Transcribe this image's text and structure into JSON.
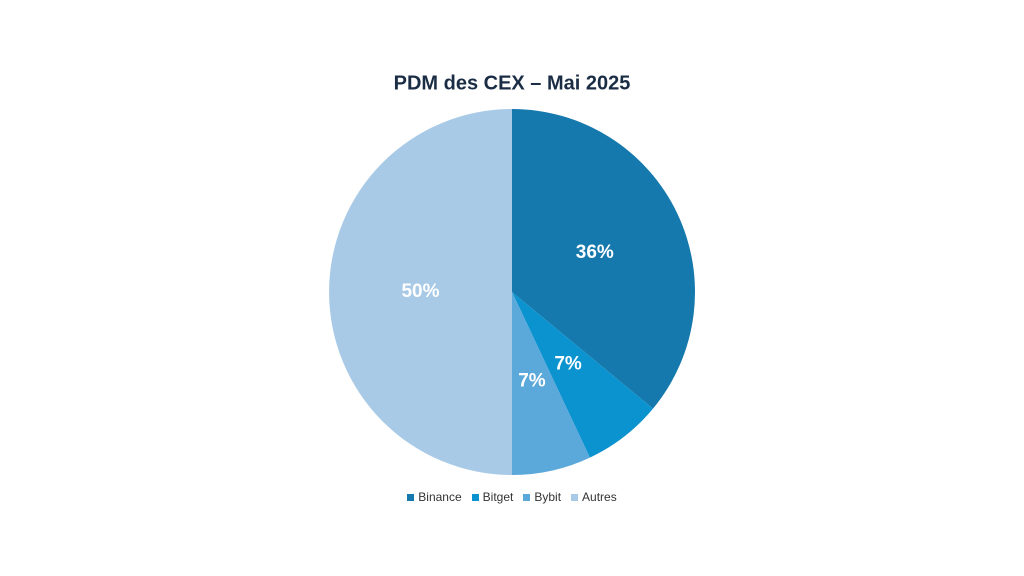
{
  "chart_data": {
    "type": "pie",
    "title": "PDM des CEX – Mai 2025",
    "categories": [
      "Binance",
      "Bitget",
      "Bybit",
      "Autres"
    ],
    "values": [
      36,
      7,
      7,
      50
    ],
    "value_labels": [
      "36%",
      "7%",
      "7%",
      "50%"
    ],
    "colors": [
      "#1579ad",
      "#0b93cf",
      "#5ba8da",
      "#a8cae6"
    ],
    "legend": "bottom"
  }
}
